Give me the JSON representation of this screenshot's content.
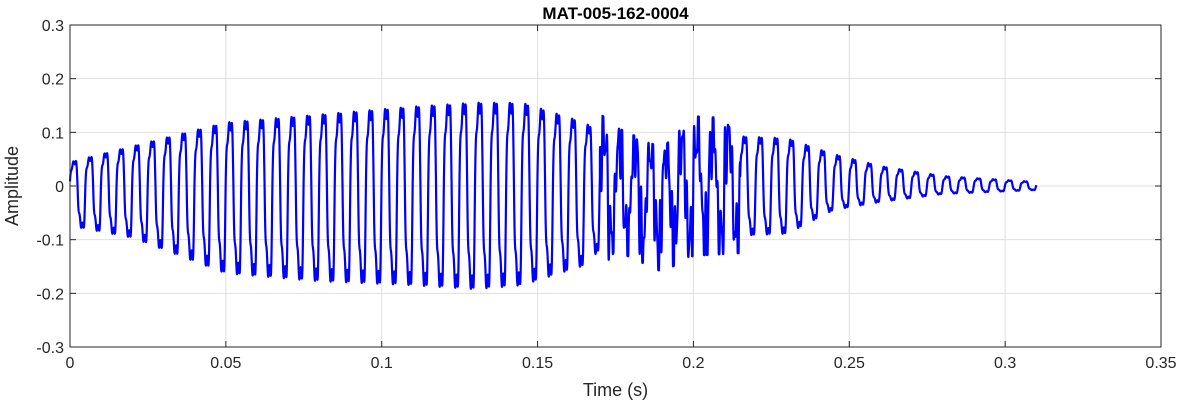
{
  "chart_data": {
    "type": "line",
    "title": "MAT-005-162-0004",
    "xlabel": "Time (s)",
    "ylabel": "Amplitude",
    "xlim": [
      0,
      0.35
    ],
    "ylim": [
      -0.3,
      0.3
    ],
    "xticks": [
      0,
      0.05,
      0.1,
      0.15,
      0.2,
      0.25,
      0.3,
      0.35
    ],
    "xtick_labels": [
      "0",
      "0.05",
      "0.1",
      "0.15",
      "0.2",
      "0.25",
      "0.3",
      "0.35"
    ],
    "yticks": [
      -0.3,
      -0.2,
      -0.1,
      0,
      0.1,
      0.2,
      0.3
    ],
    "ytick_labels": [
      "-0.3",
      "-0.2",
      "-0.1",
      "0",
      "0.1",
      "0.2",
      "0.3"
    ],
    "grid": true,
    "line_color": "#0000ff",
    "signal": {
      "duration_s": 0.31,
      "fundamental_hz": 200,
      "envelope": [
        {
          "t": 0.0,
          "pos": 0.06,
          "neg": -0.1
        },
        {
          "t": 0.02,
          "pos": 0.1,
          "neg": -0.13
        },
        {
          "t": 0.05,
          "pos": 0.16,
          "neg": -0.22
        },
        {
          "t": 0.08,
          "pos": 0.18,
          "neg": -0.24
        },
        {
          "t": 0.11,
          "pos": 0.2,
          "neg": -0.25
        },
        {
          "t": 0.13,
          "pos": 0.21,
          "neg": -0.26
        },
        {
          "t": 0.145,
          "pos": 0.21,
          "neg": -0.25
        },
        {
          "t": 0.165,
          "pos": 0.16,
          "neg": -0.2
        },
        {
          "t": 0.175,
          "pos": 0.11,
          "neg": -0.12
        },
        {
          "t": 0.19,
          "pos": 0.07,
          "neg": -0.16
        },
        {
          "t": 0.2,
          "pos": 0.13,
          "neg": -0.13
        },
        {
          "t": 0.23,
          "pos": 0.12,
          "neg": -0.12
        },
        {
          "t": 0.245,
          "pos": 0.08,
          "neg": -0.06
        },
        {
          "t": 0.26,
          "pos": 0.05,
          "neg": -0.04
        },
        {
          "t": 0.28,
          "pos": 0.025,
          "neg": -0.02
        },
        {
          "t": 0.31,
          "pos": 0.01,
          "neg": -0.01
        }
      ]
    }
  }
}
